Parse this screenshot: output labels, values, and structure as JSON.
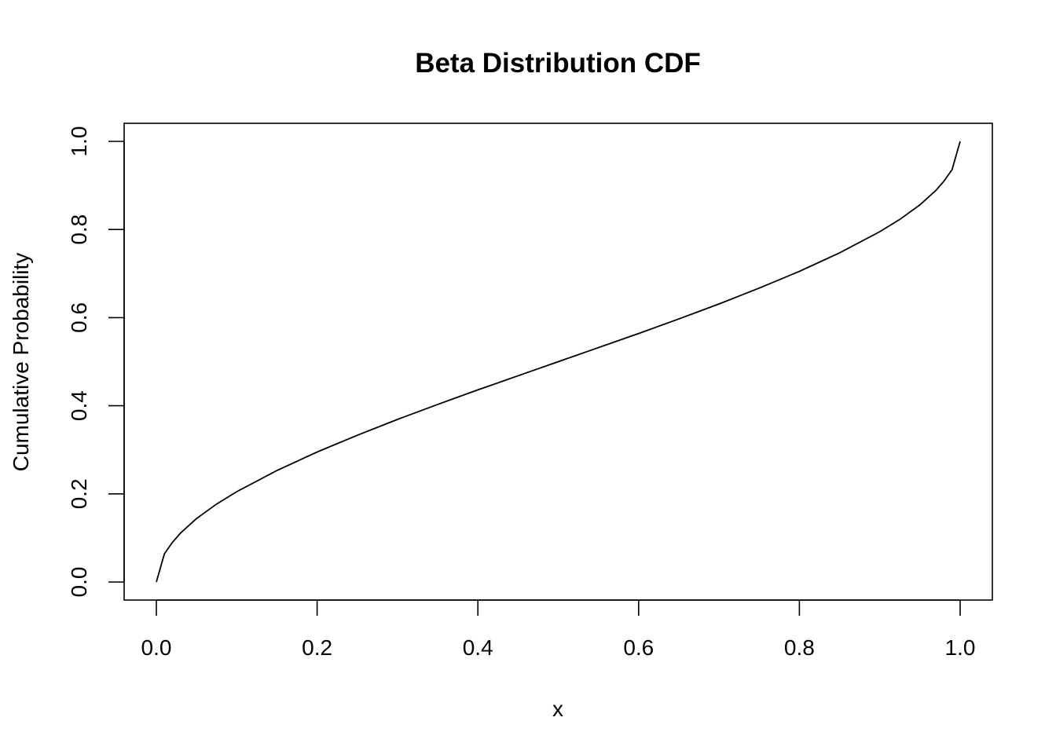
{
  "chart_data": {
    "type": "line",
    "title": "Beta Distribution CDF",
    "xlabel": "x",
    "ylabel": "Cumulative Probability",
    "xlim": [
      0,
      1
    ],
    "ylim": [
      0,
      1
    ],
    "grid": false,
    "legend": "none",
    "line_color": "#000000",
    "x_ticks": [
      0.0,
      0.2,
      0.4,
      0.6,
      0.8,
      1.0
    ],
    "x_tick_labels": [
      "0.0",
      "0.2",
      "0.4",
      "0.6",
      "0.8",
      "1.0"
    ],
    "y_ticks": [
      0.0,
      0.2,
      0.4,
      0.6,
      0.8,
      1.0
    ],
    "y_tick_labels": [
      "0.0",
      "0.2",
      "0.4",
      "0.6",
      "0.8",
      "1.0"
    ],
    "series": [
      {
        "x": [
          0,
          0.01,
          0.02,
          0.03,
          0.05,
          0.075,
          0.1,
          0.15,
          0.2,
          0.25,
          0.3,
          0.35,
          0.4,
          0.45,
          0.5,
          0.55,
          0.6,
          0.65,
          0.7,
          0.75,
          0.8,
          0.85,
          0.9,
          0.925,
          0.95,
          0.97,
          0.98,
          0.99,
          1.0
        ],
        "y": [
          0,
          0.064,
          0.09,
          0.111,
          0.144,
          0.177,
          0.205,
          0.253,
          0.295,
          0.333,
          0.369,
          0.403,
          0.436,
          0.468,
          0.5,
          0.532,
          0.564,
          0.597,
          0.631,
          0.667,
          0.705,
          0.747,
          0.795,
          0.823,
          0.856,
          0.889,
          0.91,
          0.936,
          1.0
        ]
      }
    ]
  }
}
